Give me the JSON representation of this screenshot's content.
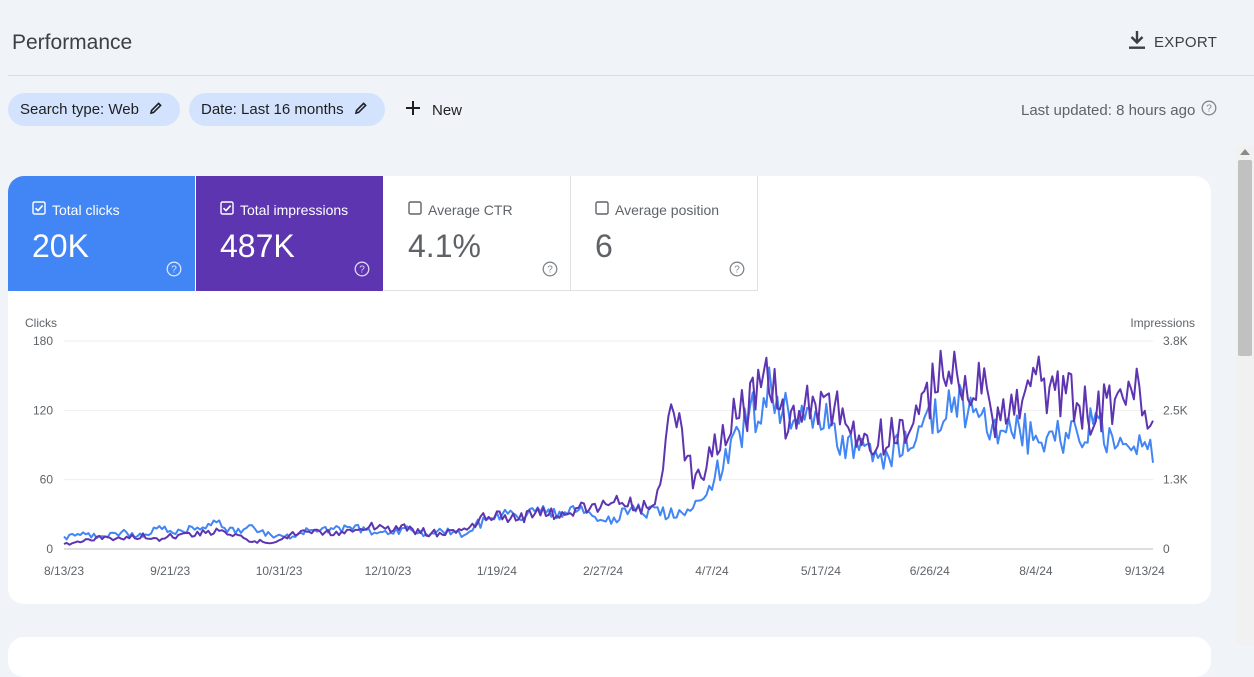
{
  "header": {
    "title": "Performance",
    "export_label": "EXPORT",
    "export_icon": "download-icon"
  },
  "filters": {
    "search_type": "Search type: Web",
    "date": "Date: Last 16 months",
    "new_label": "New",
    "last_updated": "Last updated: 8 hours ago"
  },
  "metrics": [
    {
      "label": "Total clicks",
      "value": "20K",
      "checked": true,
      "color": "#4285f4"
    },
    {
      "label": "Total impressions",
      "value": "487K",
      "checked": true,
      "color": "#5e35b1"
    },
    {
      "label": "Average CTR",
      "value": "4.1%",
      "checked": false
    },
    {
      "label": "Average position",
      "value": "6",
      "checked": false
    }
  ],
  "chart_data": {
    "type": "line",
    "left_axis_label": "Clicks",
    "right_axis_label": "Impressions",
    "left_ticks": [
      "180",
      "120",
      "60",
      "0"
    ],
    "right_ticks": [
      "3.8K",
      "2.5K",
      "1.3K",
      "0"
    ],
    "left_ylim": [
      0,
      180
    ],
    "right_ylim": [
      0,
      3800
    ],
    "x_ticks": [
      "8/13/23",
      "9/21/23",
      "10/31/23",
      "12/10/23",
      "1/19/24",
      "2/27/24",
      "4/7/24",
      "5/17/24",
      "6/26/24",
      "8/4/24",
      "9/13/24"
    ],
    "x_range": [
      "2023-08-13",
      "2024-09-16"
    ],
    "grid": true,
    "series": [
      {
        "name": "Clicks",
        "color": "#4285f4",
        "axis": "left",
        "points": [
          [
            "2023-08-13",
            10
          ],
          [
            "2023-08-20",
            14
          ],
          [
            "2023-08-27",
            9
          ],
          [
            "2023-09-03",
            15
          ],
          [
            "2023-09-10",
            12
          ],
          [
            "2023-09-17",
            17
          ],
          [
            "2023-09-24",
            14
          ],
          [
            "2023-10-01",
            18
          ],
          [
            "2023-10-08",
            22
          ],
          [
            "2023-10-15",
            16
          ],
          [
            "2023-10-22",
            18
          ],
          [
            "2023-10-29",
            12
          ],
          [
            "2023-11-05",
            10
          ],
          [
            "2023-11-12",
            17
          ],
          [
            "2023-11-19",
            16
          ],
          [
            "2023-11-26",
            19
          ],
          [
            "2023-12-03",
            16
          ],
          [
            "2023-12-10",
            14
          ],
          [
            "2023-12-17",
            18
          ],
          [
            "2023-12-24",
            12
          ],
          [
            "2023-12-31",
            16
          ],
          [
            "2024-01-07",
            13
          ],
          [
            "2024-01-14",
            25
          ],
          [
            "2024-01-21",
            30
          ],
          [
            "2024-01-28",
            28
          ],
          [
            "2024-02-04",
            35
          ],
          [
            "2024-02-11",
            28
          ],
          [
            "2024-02-18",
            33
          ],
          [
            "2024-02-25",
            26
          ],
          [
            "2024-03-03",
            28
          ],
          [
            "2024-03-10",
            34
          ],
          [
            "2024-03-17",
            32
          ],
          [
            "2024-03-24",
            30
          ],
          [
            "2024-03-31",
            38
          ],
          [
            "2024-04-07",
            60
          ],
          [
            "2024-04-14",
            85
          ],
          [
            "2024-04-21",
            115
          ],
          [
            "2024-04-28",
            140
          ],
          [
            "2024-05-05",
            118
          ],
          [
            "2024-05-12",
            105
          ],
          [
            "2024-05-19",
            112
          ],
          [
            "2024-05-26",
            92
          ],
          [
            "2024-06-02",
            85
          ],
          [
            "2024-06-09",
            78
          ],
          [
            "2024-06-16",
            90
          ],
          [
            "2024-06-23",
            106
          ],
          [
            "2024-06-30",
            118
          ],
          [
            "2024-07-07",
            128
          ],
          [
            "2024-07-14",
            108
          ],
          [
            "2024-07-21",
            98
          ],
          [
            "2024-07-28",
            102
          ],
          [
            "2024-08-04",
            95
          ],
          [
            "2024-08-11",
            105
          ],
          [
            "2024-08-18",
            98
          ],
          [
            "2024-08-25",
            110
          ],
          [
            "2024-09-01",
            92
          ],
          [
            "2024-09-08",
            102
          ],
          [
            "2024-09-15",
            82
          ]
        ]
      },
      {
        "name": "Impressions",
        "color": "#5e35b1",
        "axis": "right",
        "points": [
          [
            "2023-08-13",
            80
          ],
          [
            "2023-08-20",
            150
          ],
          [
            "2023-08-27",
            210
          ],
          [
            "2023-09-03",
            190
          ],
          [
            "2023-09-10",
            230
          ],
          [
            "2023-09-17",
            200
          ],
          [
            "2023-09-24",
            260
          ],
          [
            "2023-10-01",
            300
          ],
          [
            "2023-10-08",
            330
          ],
          [
            "2023-10-15",
            250
          ],
          [
            "2023-10-22",
            120
          ],
          [
            "2023-10-29",
            140
          ],
          [
            "2023-11-05",
            250
          ],
          [
            "2023-11-12",
            300
          ],
          [
            "2023-11-19",
            280
          ],
          [
            "2023-11-26",
            350
          ],
          [
            "2023-12-03",
            420
          ],
          [
            "2023-12-10",
            400
          ],
          [
            "2023-12-17",
            360
          ],
          [
            "2023-12-24",
            300
          ],
          [
            "2023-12-31",
            280
          ],
          [
            "2024-01-07",
            380
          ],
          [
            "2024-01-14",
            550
          ],
          [
            "2024-01-21",
            620
          ],
          [
            "2024-01-28",
            600
          ],
          [
            "2024-02-04",
            700
          ],
          [
            "2024-02-11",
            650
          ],
          [
            "2024-02-18",
            720
          ],
          [
            "2024-02-25",
            700
          ],
          [
            "2024-03-03",
            900
          ],
          [
            "2024-03-10",
            780
          ],
          [
            "2024-03-17",
            700
          ],
          [
            "2024-03-24",
            2800
          ],
          [
            "2024-03-31",
            1300
          ],
          [
            "2024-04-07",
            1700
          ],
          [
            "2024-04-14",
            2500
          ],
          [
            "2024-04-21",
            2600
          ],
          [
            "2024-04-28",
            3100
          ],
          [
            "2024-05-05",
            2300
          ],
          [
            "2024-05-12",
            2600
          ],
          [
            "2024-05-19",
            2800
          ],
          [
            "2024-05-26",
            2300
          ],
          [
            "2024-06-02",
            2000
          ],
          [
            "2024-06-09",
            2100
          ],
          [
            "2024-06-16",
            2200
          ],
          [
            "2024-06-23",
            2400
          ],
          [
            "2024-06-30",
            3500
          ],
          [
            "2024-07-07",
            2900
          ],
          [
            "2024-07-14",
            3000
          ],
          [
            "2024-07-21",
            2400
          ],
          [
            "2024-07-28",
            2600
          ],
          [
            "2024-08-04",
            3100
          ],
          [
            "2024-08-11",
            2800
          ],
          [
            "2024-08-18",
            2800
          ],
          [
            "2024-08-25",
            2400
          ],
          [
            "2024-09-01",
            2700
          ],
          [
            "2024-09-08",
            3100
          ],
          [
            "2024-09-15",
            2150
          ]
        ]
      }
    ]
  }
}
